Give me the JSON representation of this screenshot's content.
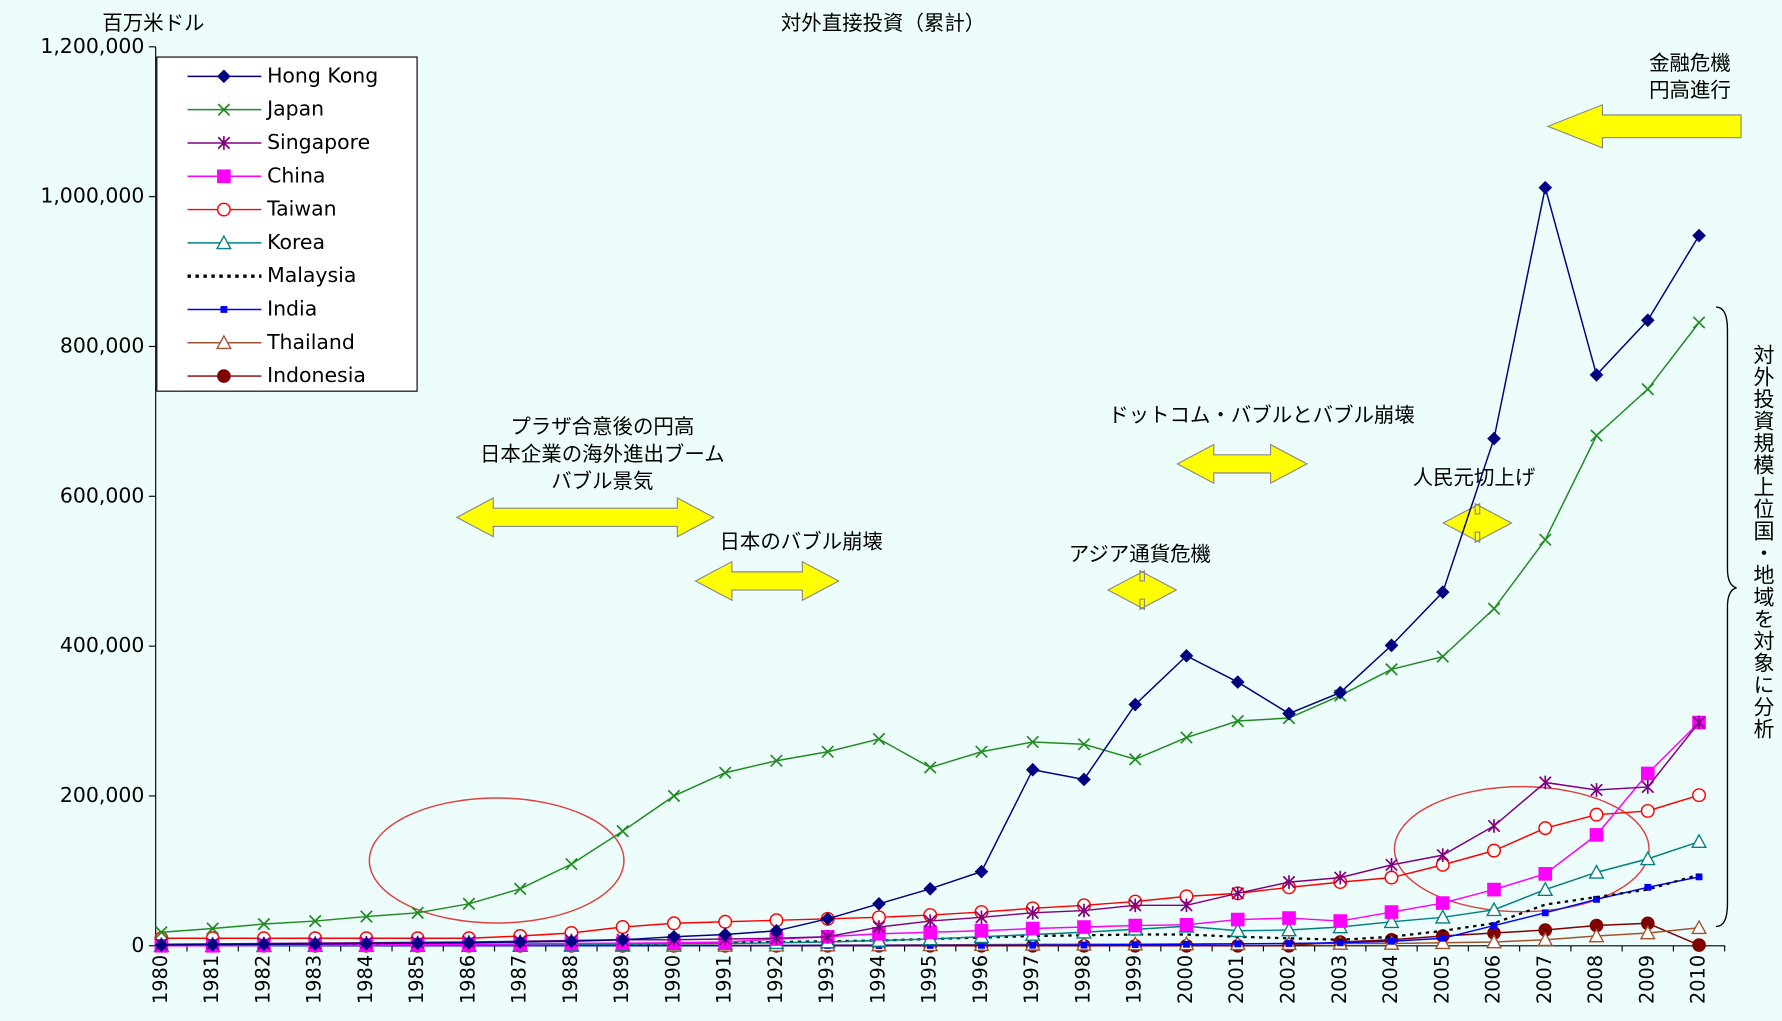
{
  "chart_data": {
    "type": "line",
    "title": "対外直接投資（累計）",
    "y_label": "百万米ドル",
    "categories": [
      "1980",
      "1981",
      "1982",
      "1983",
      "1984",
      "1985",
      "1986",
      "1987",
      "1988",
      "1989",
      "1990",
      "1991",
      "1992",
      "1993",
      "1994",
      "1995",
      "1996",
      "1997",
      "1998",
      "1999",
      "2000",
      "2001",
      "2002",
      "2003",
      "2004",
      "2005",
      "2006",
      "2007",
      "2008",
      "2009",
      "2010"
    ],
    "ylim": [
      0,
      1200000
    ],
    "yticks": [
      0,
      {
        "value": 200000,
        "label": "200,000"
      },
      {
        "value": 400000,
        "label": "400,000"
      },
      {
        "value": 600000,
        "label": "600,000"
      },
      {
        "value": 800000,
        "label": "800,000"
      },
      {
        "value": 1000000,
        "label": "1,000,000"
      },
      {
        "value": 1200000,
        "label": "1,200,000"
      }
    ],
    "legend": "upper left",
    "series": [
      {
        "name": "Hong Kong",
        "color": "#000080",
        "marker": "diamond",
        "values": [
          1000,
          1500,
          2000,
          2500,
          3000,
          3500,
          4000,
          5000,
          6000,
          8000,
          12000,
          15000,
          20000,
          36000,
          56000,
          76000,
          99000,
          235000,
          222000,
          322000,
          387000,
          352000,
          310000,
          338000,
          401000,
          472000,
          677000,
          1012000,
          762000,
          835000,
          948000
        ]
      },
      {
        "name": "Japan",
        "color": "#228b22",
        "marker": "x",
        "values": [
          18000,
          23000,
          29000,
          33000,
          39000,
          44000,
          56000,
          76000,
          109000,
          153000,
          200000,
          231000,
          247000,
          259000,
          276000,
          238000,
          259000,
          272000,
          269000,
          249000,
          278000,
          300000,
          304000,
          334000,
          369000,
          386000,
          450000,
          542000,
          681000,
          743000,
          832000
        ]
      },
      {
        "name": "Singapore",
        "color": "#800080",
        "marker": "star",
        "values": [
          2000,
          2500,
          3000,
          3500,
          4000,
          4500,
          5000,
          6000,
          7000,
          8000,
          8000,
          9000,
          10000,
          12000,
          25000,
          33000,
          38000,
          44000,
          47000,
          54000,
          54000,
          70000,
          85000,
          91000,
          108000,
          121000,
          160000,
          218000,
          208000,
          212000,
          298000
        ]
      },
      {
        "name": "China",
        "color": "#ff00ff",
        "marker": "square",
        "values": [
          0,
          0,
          500,
          800,
          1000,
          1500,
          2000,
          2500,
          3000,
          3500,
          4000,
          5000,
          9000,
          12000,
          16000,
          18000,
          20000,
          23000,
          25000,
          27000,
          28000,
          35000,
          37000,
          33000,
          45000,
          57000,
          75000,
          96000,
          148000,
          230000,
          298000
        ]
      },
      {
        "name": "Taiwan",
        "color": "#ff0000",
        "marker": "circle",
        "values": [
          10000,
          10000,
          10000,
          10000,
          10000,
          10000,
          10000,
          13000,
          17000,
          25000,
          30000,
          32000,
          34000,
          36000,
          38000,
          41000,
          45000,
          50000,
          54000,
          59000,
          66000,
          70000,
          78000,
          85000,
          91000,
          108000,
          127000,
          157000,
          175000,
          180000,
          201000
        ]
      },
      {
        "name": "Korea",
        "color": "#008080",
        "marker": "triangle",
        "values": [
          200,
          300,
          400,
          500,
          600,
          700,
          800,
          1000,
          1500,
          2000,
          2500,
          3000,
          4000,
          5000,
          7000,
          9000,
          12000,
          15000,
          18000,
          22000,
          26000,
          20000,
          21000,
          25000,
          32000,
          38000,
          48000,
          75000,
          98000,
          116000,
          139000
        ]
      },
      {
        "name": "Malaysia",
        "color": "#000000",
        "marker": "none",
        "dash": "3,4",
        "values": [
          500,
          500,
          600,
          700,
          800,
          900,
          1000,
          1200,
          1500,
          2000,
          3000,
          4000,
          5000,
          6000,
          7000,
          9000,
          11000,
          13000,
          14000,
          15000,
          15000,
          12000,
          10000,
          8000,
          12000,
          20000,
          30000,
          55000,
          65000,
          75000,
          95000
        ]
      },
      {
        "name": "India",
        "color": "#0000ff",
        "marker": "smallsquare",
        "values": [
          0,
          0,
          0,
          0,
          0,
          0,
          0,
          0,
          0,
          0,
          100,
          100,
          200,
          300,
          400,
          500,
          600,
          800,
          1000,
          1500,
          2000,
          2500,
          3000,
          4000,
          6000,
          10000,
          27000,
          44000,
          62000,
          78000,
          92000
        ]
      },
      {
        "name": "Thailand",
        "color": "#a0522d",
        "marker": "triangle",
        "values": [
          0,
          0,
          0,
          0,
          0,
          0,
          0,
          100,
          200,
          300,
          400,
          500,
          600,
          800,
          1000,
          1200,
          1500,
          1800,
          2000,
          2200,
          2400,
          2500,
          2700,
          3000,
          3000,
          4000,
          5000,
          8000,
          13000,
          17000,
          24000
        ]
      },
      {
        "name": "Indonesia",
        "color": "#800000",
        "marker": "dot",
        "values": [
          0,
          0,
          0,
          0,
          0,
          0,
          0,
          0,
          0,
          0,
          0,
          0,
          0,
          0,
          0,
          0,
          0,
          0,
          0,
          0,
          0,
          0,
          0,
          5000,
          8000,
          13000,
          17000,
          21000,
          27000,
          30000,
          1000
        ]
      }
    ],
    "annotations": [
      {
        "lines": [
          "金融危機",
          "円高進行"
        ]
      },
      {
        "lines": [
          "プラザ合意後の円高",
          "日本企業の海外進出ブーム",
          "バブル景気"
        ]
      },
      {
        "lines": [
          "日本のバブル崩壊"
        ]
      },
      {
        "lines": [
          "アジア通貨危機"
        ]
      },
      {
        "lines": [
          "ドットコム・バブルとバブル崩壊"
        ]
      },
      {
        "lines": [
          "人民元切上げ"
        ]
      }
    ],
    "side_note": "対外投資規模上位国・地域を対象に分析"
  }
}
